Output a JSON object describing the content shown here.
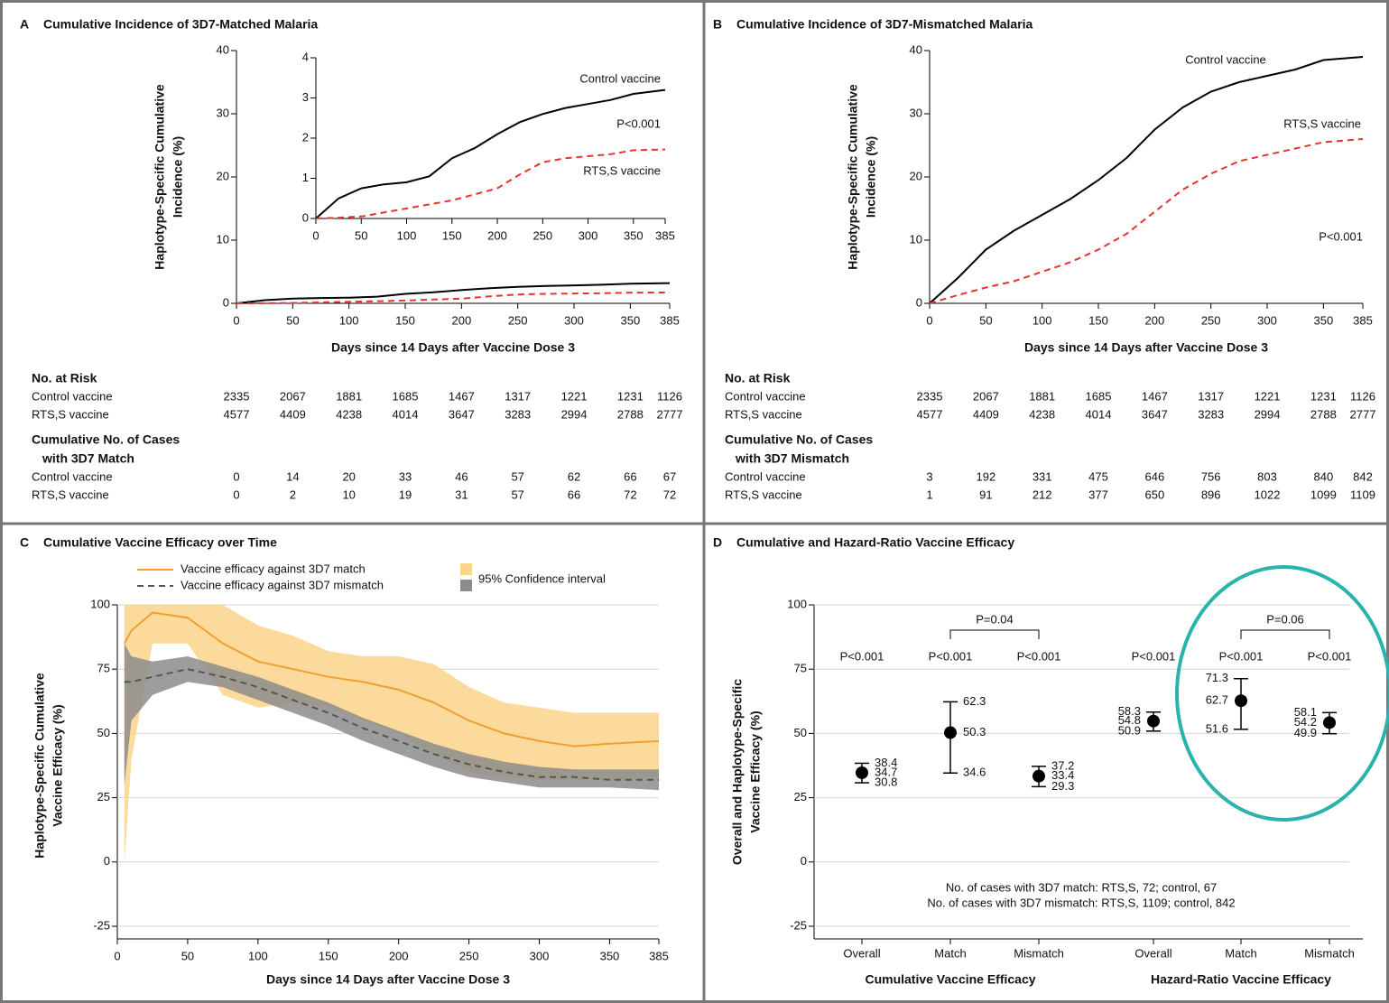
{
  "chart_data": [
    {
      "type": "line",
      "panel": "A",
      "title": "Cumulative Incidence of 3D7-Matched Malaria",
      "ylabel": [
        "Haplotype-Specific Cumulative",
        "Incidence (%)"
      ],
      "xlabel": "Days since 14 Days after Vaccine Dose 3",
      "x": [
        0,
        25,
        50,
        75,
        100,
        125,
        150,
        175,
        200,
        225,
        250,
        275,
        300,
        325,
        350,
        385
      ],
      "xlim": [
        0,
        385
      ],
      "xticks": [
        0,
        50,
        100,
        150,
        200,
        250,
        300,
        350,
        385
      ],
      "ylim": [
        0,
        40
      ],
      "yticks": [
        0,
        10,
        20,
        30,
        40
      ],
      "annotation": "P<0.001",
      "series": [
        {
          "name": "Control vaccine",
          "color": "#000000",
          "dash": false,
          "values": [
            0,
            0.5,
            0.75,
            0.85,
            0.9,
            1.05,
            1.5,
            1.75,
            2.1,
            2.4,
            2.6,
            2.75,
            2.85,
            2.95,
            3.1,
            3.2
          ]
        },
        {
          "name": "RTS,S vaccine",
          "color": "#e8322e",
          "dash": true,
          "values": [
            0,
            0.02,
            0.05,
            0.15,
            0.25,
            0.35,
            0.45,
            0.6,
            0.75,
            1.1,
            1.4,
            1.5,
            1.55,
            1.6,
            1.7,
            1.72
          ]
        }
      ],
      "inset": {
        "xlim": [
          0,
          385
        ],
        "xticks": [
          0,
          50,
          100,
          150,
          200,
          250,
          300,
          350,
          385
        ],
        "ylim": [
          0,
          4
        ],
        "yticks": [
          0,
          1,
          2,
          3,
          4
        ]
      },
      "risk_table": {
        "title": [
          "No. at Risk"
        ],
        "rows": [
          {
            "label": "Control vaccine",
            "values": [
              2335,
              2067,
              1881,
              1685,
              1467,
              1317,
              1221,
              1231,
              1126
            ]
          },
          {
            "label": "RTS,S vaccine",
            "values": [
              4577,
              4409,
              4238,
              4014,
              3647,
              3283,
              2994,
              2788,
              2777
            ]
          }
        ]
      },
      "cases_table": {
        "title": [
          "Cumulative No. of Cases",
          "with 3D7 Match"
        ],
        "rows": [
          {
            "label": "Control vaccine",
            "values": [
              0,
              14,
              20,
              33,
              46,
              57,
              62,
              66,
              67
            ]
          },
          {
            "label": "RTS,S vaccine",
            "values": [
              0,
              2,
              10,
              19,
              31,
              57,
              66,
              72,
              72
            ]
          }
        ]
      }
    },
    {
      "type": "line",
      "panel": "B",
      "title": "Cumulative Incidence of 3D7-Mismatched Malaria",
      "ylabel": [
        "Haplotype-Specific Cumulative",
        "Incidence (%)"
      ],
      "xlabel": "Days since 14 Days after Vaccine Dose 3",
      "x": [
        0,
        25,
        50,
        75,
        100,
        125,
        150,
        175,
        200,
        225,
        250,
        275,
        300,
        325,
        350,
        385
      ],
      "xlim": [
        0,
        385
      ],
      "xticks": [
        0,
        50,
        100,
        150,
        200,
        250,
        300,
        350,
        385
      ],
      "ylim": [
        0,
        40
      ],
      "yticks": [
        0,
        10,
        20,
        30,
        40
      ],
      "annotation": "P<0.001",
      "series": [
        {
          "name": "Control vaccine",
          "color": "#000000",
          "dash": false,
          "values": [
            0,
            4,
            8.5,
            11.5,
            14,
            16.5,
            19.5,
            23,
            27.5,
            31,
            33.5,
            35,
            36,
            37,
            38.5,
            39
          ]
        },
        {
          "name": "RTS,S vaccine",
          "color": "#e8322e",
          "dash": true,
          "values": [
            0,
            1.3,
            2.5,
            3.5,
            5,
            6.5,
            8.5,
            11,
            14.5,
            18,
            20.5,
            22.5,
            23.5,
            24.5,
            25.5,
            26
          ]
        }
      ],
      "risk_table": {
        "title": [
          "No. at Risk"
        ],
        "rows": [
          {
            "label": "Control vaccine",
            "values": [
              2335,
              2067,
              1881,
              1685,
              1467,
              1317,
              1221,
              1231,
              1126
            ]
          },
          {
            "label": "RTS,S vaccine",
            "values": [
              4577,
              4409,
              4238,
              4014,
              3647,
              3283,
              2994,
              2788,
              2777
            ]
          }
        ]
      },
      "cases_table": {
        "title": [
          "Cumulative No. of Cases",
          "with 3D7 Mismatch"
        ],
        "rows": [
          {
            "label": "Control vaccine",
            "values": [
              3,
              192,
              331,
              475,
              646,
              756,
              803,
              840,
              842
            ]
          },
          {
            "label": "RTS,S vaccine",
            "values": [
              1,
              91,
              212,
              377,
              650,
              896,
              1022,
              1099,
              1109
            ]
          }
        ]
      }
    },
    {
      "type": "line",
      "panel": "C",
      "title": "Cumulative Vaccine Efficacy over Time",
      "ylabel": [
        "Haplotype-Specific Cumulative",
        "Vaccine Efficacy (%)"
      ],
      "xlabel": "Days since 14 Days after Vaccine Dose 3",
      "x": [
        5,
        10,
        25,
        50,
        75,
        100,
        125,
        150,
        175,
        200,
        225,
        250,
        275,
        300,
        325,
        350,
        385
      ],
      "xlim": [
        0,
        385
      ],
      "xticks": [
        0,
        50,
        100,
        150,
        200,
        250,
        300,
        350,
        385
      ],
      "ylim": [
        -25,
        100
      ],
      "yticks": [
        -25,
        0,
        25,
        50,
        75,
        100
      ],
      "grid": true,
      "band_label": "95% Confidence interval",
      "series": [
        {
          "name": "Vaccine efficacy against 3D7 match",
          "color": "#f0a030",
          "dash": false,
          "band_color": "#fcd48a",
          "values": [
            85,
            90,
            97,
            95,
            85,
            78,
            75,
            72,
            70,
            67,
            62,
            55,
            50,
            47,
            45,
            46,
            47
          ],
          "lower": [
            0,
            40,
            85,
            85,
            65,
            60,
            62,
            60,
            55,
            50,
            42,
            35,
            33,
            32,
            32,
            32,
            33
          ],
          "upper": [
            100,
            100,
            100,
            100,
            100,
            92,
            88,
            82,
            80,
            80,
            77,
            68,
            62,
            60,
            58,
            58,
            58
          ]
        },
        {
          "name": "Vaccine efficacy against 3D7 mismatch",
          "color": "#555555",
          "dash": true,
          "band_color": "#8c8c8c",
          "values": [
            70,
            70,
            72,
            75,
            72,
            68,
            63,
            58,
            52,
            47,
            42,
            38,
            35,
            33,
            33,
            32,
            32
          ],
          "lower": [
            30,
            55,
            65,
            70,
            68,
            63,
            58,
            53,
            47,
            42,
            37,
            33,
            31,
            29,
            29,
            29,
            28
          ],
          "upper": [
            85,
            80,
            78,
            80,
            76,
            72,
            67,
            62,
            56,
            51,
            46,
            42,
            39,
            37,
            36,
            36,
            36
          ]
        }
      ]
    },
    {
      "type": "errorbar",
      "panel": "D",
      "title": "Cumulative and Hazard-Ratio Vaccine Efficacy",
      "ylabel": [
        "Overall and Haplotype-Specific",
        "Vaccine Efficacy (%)"
      ],
      "categories": [
        "Overall",
        "Match",
        "Mismatch",
        "Overall",
        "Match",
        "Mismatch"
      ],
      "groups": [
        "Cumulative Vaccine Efficacy",
        "Hazard-Ratio Vaccine Efficacy"
      ],
      "values": [
        34.7,
        50.3,
        33.4,
        54.8,
        62.7,
        54.2
      ],
      "lower": [
        30.8,
        34.6,
        29.3,
        50.9,
        51.6,
        49.9
      ],
      "upper": [
        38.4,
        62.3,
        37.2,
        58.3,
        71.3,
        58.1
      ],
      "p_values": [
        "P<0.001",
        "P<0.001",
        "P<0.001",
        "P<0.001",
        "P<0.001",
        "P<0.001"
      ],
      "comparisons": [
        "P=0.04",
        "P=0.06"
      ],
      "notes": [
        "No. of cases with 3D7 match: RTS,S, 72; control, 67",
        "No. of cases with 3D7 mismatch: RTS,S, 1109; control, 842"
      ],
      "ylim": [
        -25,
        100
      ],
      "yticks": [
        -25,
        0,
        25,
        50,
        75,
        100
      ],
      "grid": true,
      "color": "#000000"
    }
  ]
}
